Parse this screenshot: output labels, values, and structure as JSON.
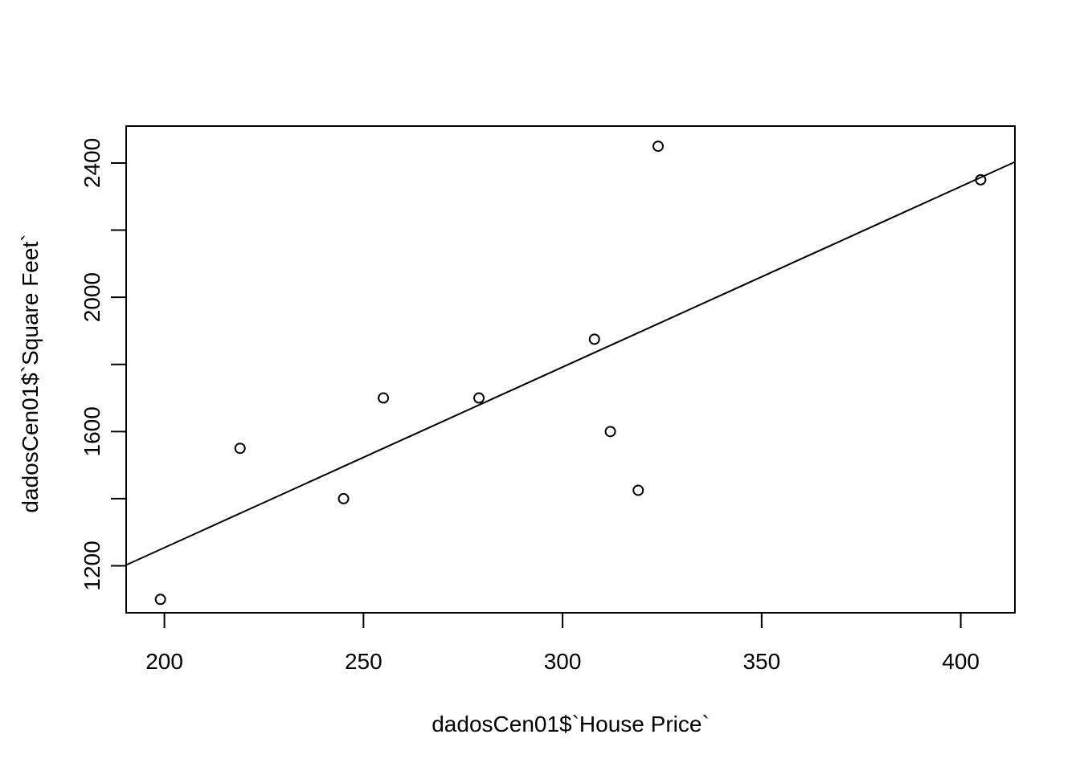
{
  "chart_data": {
    "type": "scatter",
    "xlabel": "dadosCen01$`House Price`",
    "ylabel": "dadosCen01$`Square Feet`",
    "xlim": [
      190.4,
      413.6
    ],
    "ylim": [
      1060,
      2510
    ],
    "xticks": [
      200,
      250,
      300,
      350,
      400
    ],
    "yticks": [
      1200,
      1400,
      1600,
      1800,
      2000,
      2200,
      2400
    ],
    "ytick_labels": [
      "1200",
      "",
      "1600",
      "",
      "2000",
      "",
      "2400"
    ],
    "x": [
      199,
      219,
      245,
      255,
      279,
      308,
      312,
      319,
      324,
      405
    ],
    "y": [
      1100,
      1550,
      1400,
      1700,
      1700,
      1875,
      1600,
      1425,
      2450,
      2350
    ],
    "fit_line": {
      "slope": 5.38,
      "intercept": 178
    },
    "grid": false
  }
}
